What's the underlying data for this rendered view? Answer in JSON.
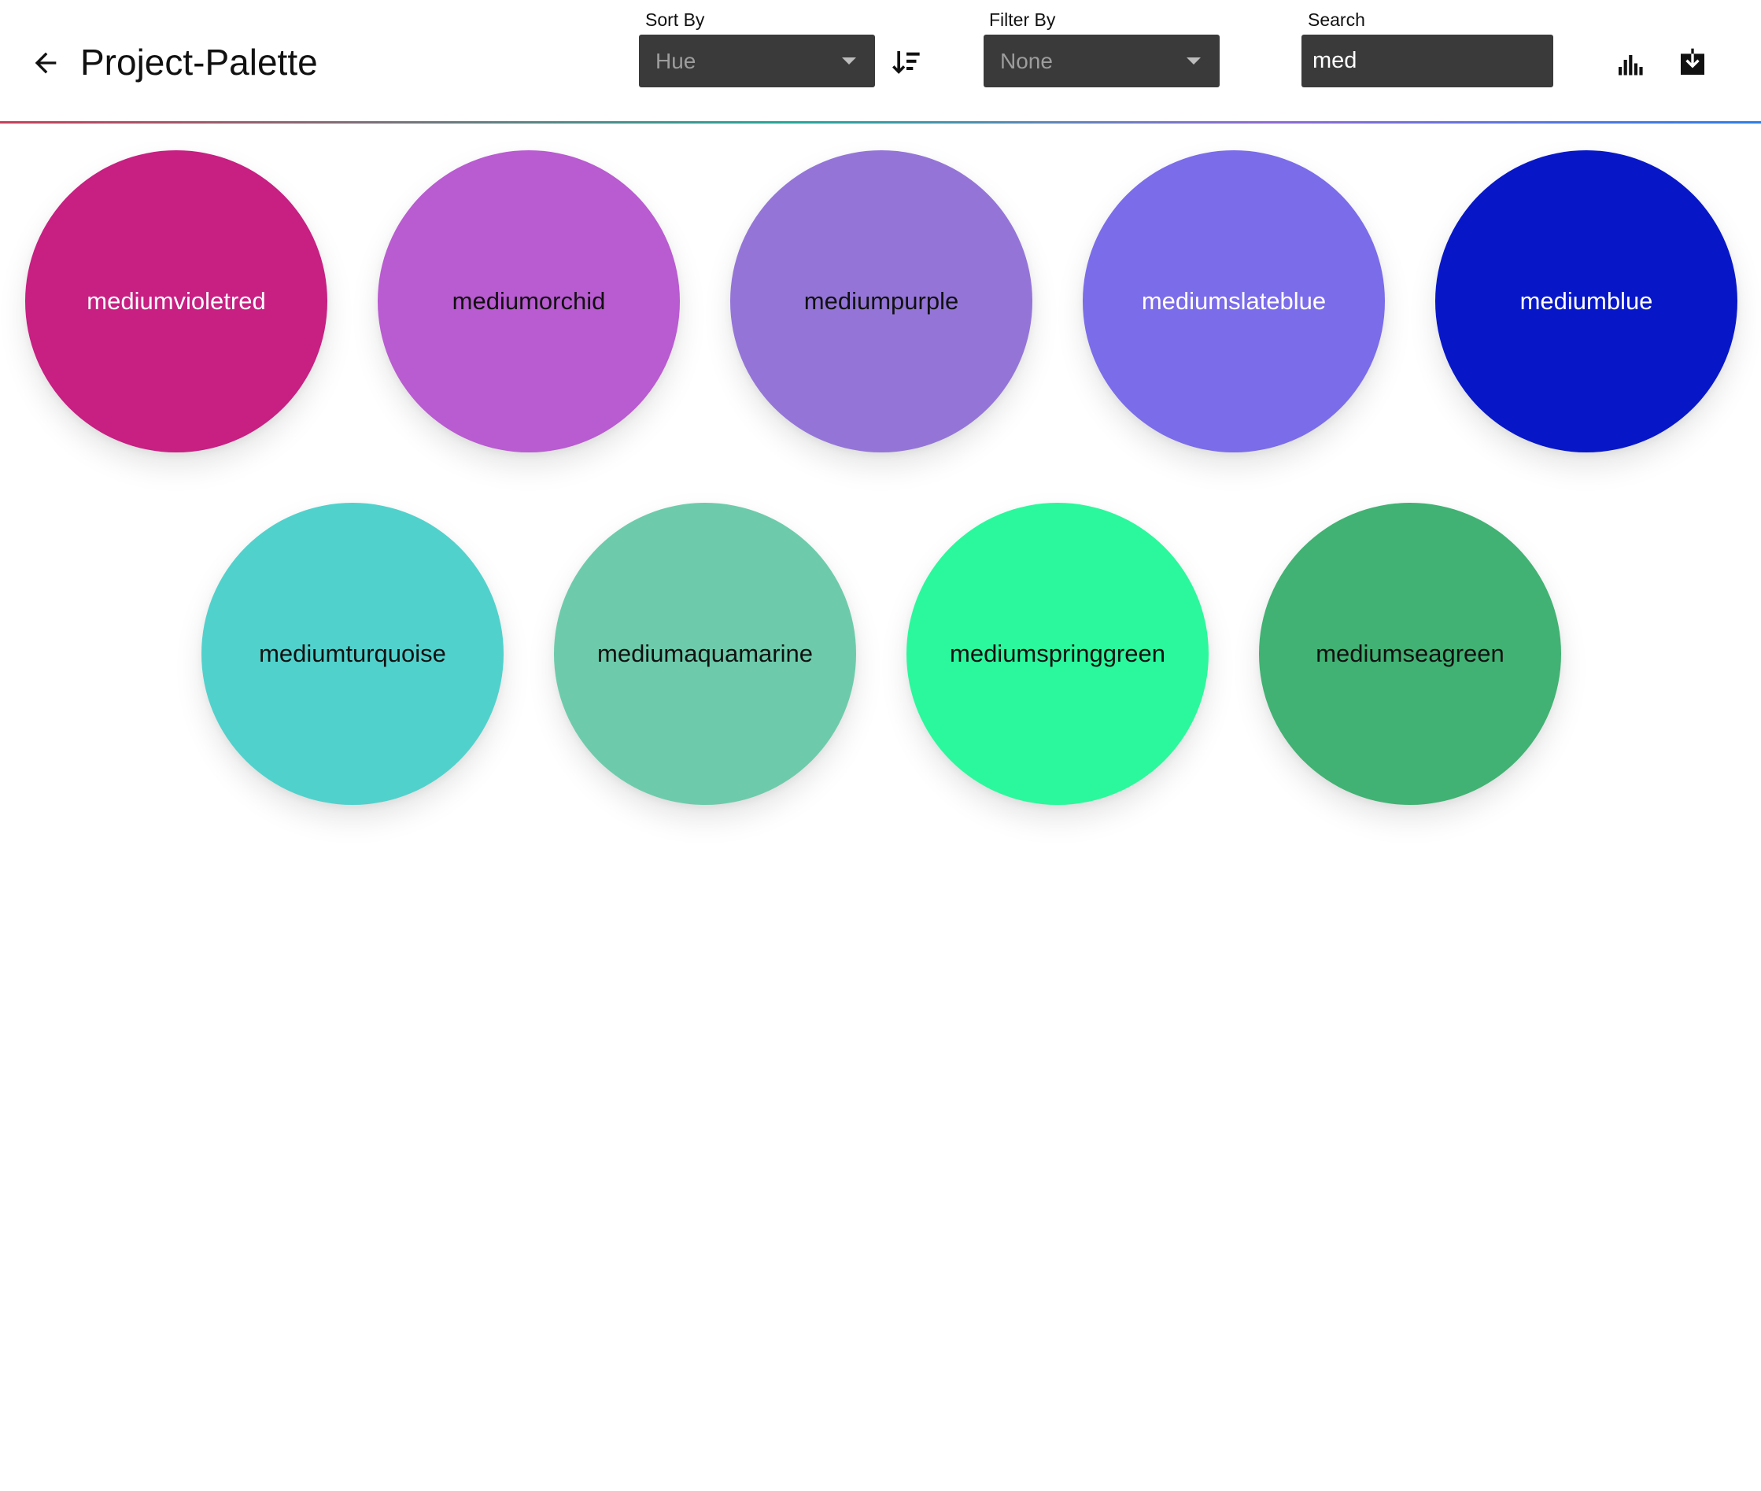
{
  "header": {
    "title": "Project-Palette",
    "back_icon": "arrow-left-icon",
    "sort": {
      "label": "Sort By",
      "value": "Hue",
      "order_icon": "sort-descending-icon"
    },
    "filter": {
      "label": "Filter By",
      "value": "None"
    },
    "search": {
      "label": "Search",
      "value": "med"
    },
    "actions": {
      "stats_icon": "bar-chart-icon",
      "download_icon": "download-icon"
    },
    "divider_colors": [
      "#c7405a",
      "#26a69a",
      "#8e6bd1",
      "#2d7ee8"
    ]
  },
  "swatches": [
    {
      "name": "mediumvioletred",
      "color": "#c71f82",
      "text_color": "#ffffff"
    },
    {
      "name": "mediumorchid",
      "color": "#b95bd1",
      "text_color": "#111111"
    },
    {
      "name": "mediumpurple",
      "color": "#9475d7",
      "text_color": "#111111"
    },
    {
      "name": "mediumslateblue",
      "color": "#7b6ce9",
      "text_color": "#ffffff"
    },
    {
      "name": "mediumblue",
      "color": "#0717c8",
      "text_color": "#ffffff"
    },
    {
      "name": "mediumturquoise",
      "color": "#51d1cc",
      "text_color": "#111111"
    },
    {
      "name": "mediumaquamarine",
      "color": "#6dcbab",
      "text_color": "#111111"
    },
    {
      "name": "mediumspringgreen",
      "color": "#2bf89c",
      "text_color": "#111111"
    },
    {
      "name": "mediumseagreen",
      "color": "#41b273",
      "text_color": "#111111"
    }
  ]
}
